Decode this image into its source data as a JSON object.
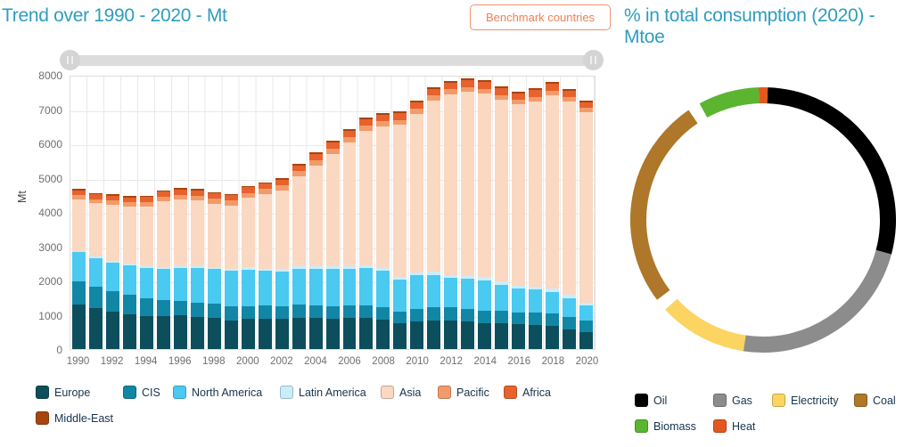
{
  "left_panel": {
    "title": "Trend over 1990 - 2020 - Mt",
    "benchmark_button_label": "Benchmark countries",
    "slider": {
      "type": "year-range",
      "handles": [
        "min",
        "max"
      ]
    },
    "chart_data": {
      "type": "bar",
      "stacked": true,
      "title": "Trend over 1990 - 2020 - Mt",
      "xlabel": "",
      "ylabel": "Mt",
      "ylim": [
        0,
        8000
      ],
      "y_ticks": [
        0,
        1000,
        2000,
        3000,
        4000,
        5000,
        6000,
        7000,
        8000
      ],
      "x_tick_labels": [
        "1990",
        "1992",
        "1994",
        "1996",
        "1998",
        "2000",
        "2002",
        "2004",
        "2006",
        "2008",
        "2010",
        "2012",
        "2014",
        "2016",
        "2018",
        "2020"
      ],
      "categories": [
        1990,
        1991,
        1992,
        1993,
        1994,
        1995,
        1996,
        1997,
        1998,
        1999,
        2000,
        2001,
        2002,
        2003,
        2004,
        2005,
        2006,
        2007,
        2008,
        2009,
        2010,
        2011,
        2012,
        2013,
        2014,
        2015,
        2016,
        2017,
        2018,
        2019,
        2020
      ],
      "grid": true,
      "legend_position": "bottom",
      "series": [
        {
          "name": "Europe",
          "color": "#0d4e5c",
          "values": [
            1300,
            1195,
            1090,
            1020,
            980,
            975,
            1000,
            950,
            910,
            850,
            890,
            900,
            890,
            920,
            910,
            890,
            910,
            920,
            870,
            770,
            800,
            830,
            840,
            810,
            760,
            750,
            720,
            700,
            670,
            580,
            500
          ]
        },
        {
          "name": "CIS",
          "color": "#1187a5",
          "values": [
            675,
            645,
            605,
            565,
            510,
            460,
            400,
            415,
            415,
            415,
            375,
            370,
            360,
            375,
            370,
            360,
            370,
            365,
            370,
            330,
            365,
            390,
            390,
            365,
            370,
            365,
            360,
            370,
            370,
            370,
            330
          ]
        },
        {
          "name": "North America",
          "color": "#4ac9f1",
          "values": [
            865,
            840,
            850,
            885,
            900,
            925,
            985,
            1010,
            1020,
            1030,
            1070,
            1030,
            1035,
            1060,
            1080,
            1100,
            1080,
            1090,
            1070,
            950,
            1000,
            960,
            850,
            880,
            890,
            770,
            690,
            670,
            640,
            550,
            450
          ]
        },
        {
          "name": "Latin America",
          "color": "#c9eefb",
          "values": [
            45,
            45,
            45,
            50,
            50,
            55,
            55,
            60,
            60,
            60,
            60,
            60,
            60,
            65,
            70,
            70,
            75,
            80,
            80,
            75,
            85,
            90,
            90,
            95,
            100,
            100,
            95,
            95,
            95,
            90,
            80
          ]
        },
        {
          "name": "Asia",
          "color": "#fad8c1",
          "values": [
            1510,
            1560,
            1645,
            1660,
            1740,
            1915,
            1945,
            1920,
            1870,
            1860,
            2045,
            2185,
            2315,
            2640,
            2960,
            3305,
            3630,
            3945,
            4140,
            4455,
            4650,
            5025,
            5305,
            5400,
            5380,
            5345,
            5320,
            5440,
            5690,
            5675,
            5600
          ]
        },
        {
          "name": "Pacific",
          "color": "#f29b6a",
          "values": [
            120,
            120,
            125,
            125,
            130,
            135,
            140,
            145,
            140,
            140,
            145,
            150,
            155,
            160,
            160,
            160,
            160,
            165,
            160,
            150,
            155,
            155,
            150,
            145,
            140,
            135,
            130,
            130,
            130,
            125,
            115
          ]
        },
        {
          "name": "Africa",
          "color": "#e7622c",
          "values": [
            150,
            150,
            150,
            150,
            155,
            155,
            160,
            160,
            160,
            160,
            165,
            165,
            165,
            170,
            175,
            180,
            180,
            185,
            190,
            190,
            195,
            195,
            200,
            200,
            205,
            200,
            195,
            195,
            195,
            190,
            180
          ]
        },
        {
          "name": "Middle-East",
          "color": "#a8440e",
          "values": [
            35,
            35,
            35,
            35,
            35,
            35,
            40,
            40,
            40,
            40,
            40,
            40,
            40,
            40,
            45,
            45,
            45,
            50,
            50,
            50,
            50,
            55,
            55,
            55,
            55,
            55,
            50,
            50,
            50,
            50,
            45
          ]
        }
      ]
    }
  },
  "right_panel": {
    "title": "% in total consumption (2020) - Mtoe",
    "chart_data": {
      "type": "pie",
      "donut": true,
      "title": "% in total consumption (2020) - Mtoe",
      "unit": "percent",
      "highlighted_slice": "Coal",
      "legend_position": "bottom",
      "segments": [
        {
          "name": "Oil",
          "color": "#000000",
          "value": 28.6
        },
        {
          "name": "Gas",
          "color": "#8c8c8c",
          "value": 23.2
        },
        {
          "name": "Electricity",
          "color": "#fcd462",
          "value": 10.8
        },
        {
          "name": "Coal",
          "color": "#ae7729",
          "value": 25.8
        },
        {
          "name": "Biomass",
          "color": "#5bb531",
          "value": 7.4
        },
        {
          "name": "Heat",
          "color": "#e3581f",
          "value": 1.1
        }
      ]
    }
  }
}
